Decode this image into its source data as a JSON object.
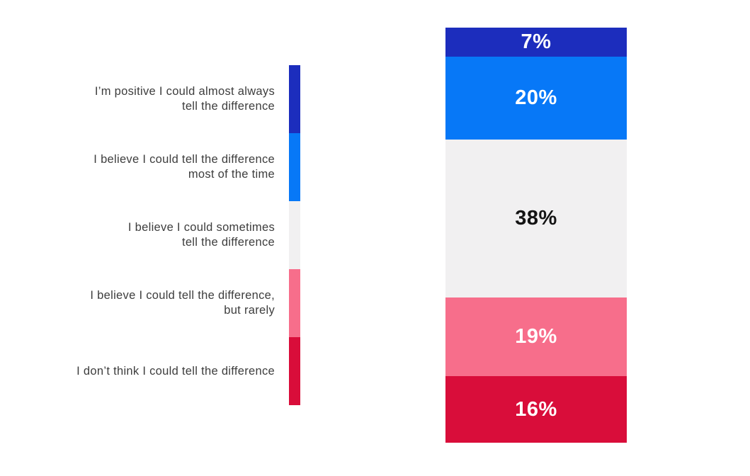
{
  "chart_data": {
    "type": "bar",
    "variant": "stacked-single-column-percentage",
    "title": "",
    "unit": "%",
    "total": 100,
    "background": "#ffffff",
    "legend_position": "left",
    "label_text_color": "#3d3d3d",
    "grid": false,
    "categories": [
      "I’m positive I could almost always tell the difference",
      "I believe I could tell the difference most of the time",
      "I believe I could sometimes tell the difference",
      "I believe I could tell the difference, but rarely",
      "I don’t think I could tell the difference"
    ],
    "values": [
      7,
      20,
      38,
      19,
      16
    ],
    "segments": [
      {
        "label": "I’m positive I could almost always tell the difference",
        "label_lines": [
          "I’m positive I could almost always",
          "tell the difference"
        ],
        "value": 7,
        "display": "7%",
        "color": "#1c2dbd",
        "value_text_color": "#ffffff"
      },
      {
        "label": "I believe I could tell the difference most of the time",
        "label_lines": [
          "I believe I could tell the difference",
          "most of the time"
        ],
        "value": 20,
        "display": "20%",
        "color": "#0778f7",
        "value_text_color": "#ffffff"
      },
      {
        "label": "I believe I could sometimes tell the difference",
        "label_lines": [
          "I believe I could sometimes",
          "tell the difference"
        ],
        "value": 38,
        "display": "38%",
        "color": "#f1f0f1",
        "value_text_color": "#141414"
      },
      {
        "label": "I believe I could tell the difference, but rarely",
        "label_lines": [
          "I believe I could tell the difference,",
          "but rarely"
        ],
        "value": 19,
        "display": "19%",
        "color": "#f76e8b",
        "value_text_color": "#ffffff"
      },
      {
        "label": "I don’t think I could tell the difference",
        "label_lines": [
          "I don’t think I could tell the difference"
        ],
        "value": 16,
        "display": "16%",
        "color": "#d90d3a",
        "value_text_color": "#ffffff"
      }
    ]
  }
}
